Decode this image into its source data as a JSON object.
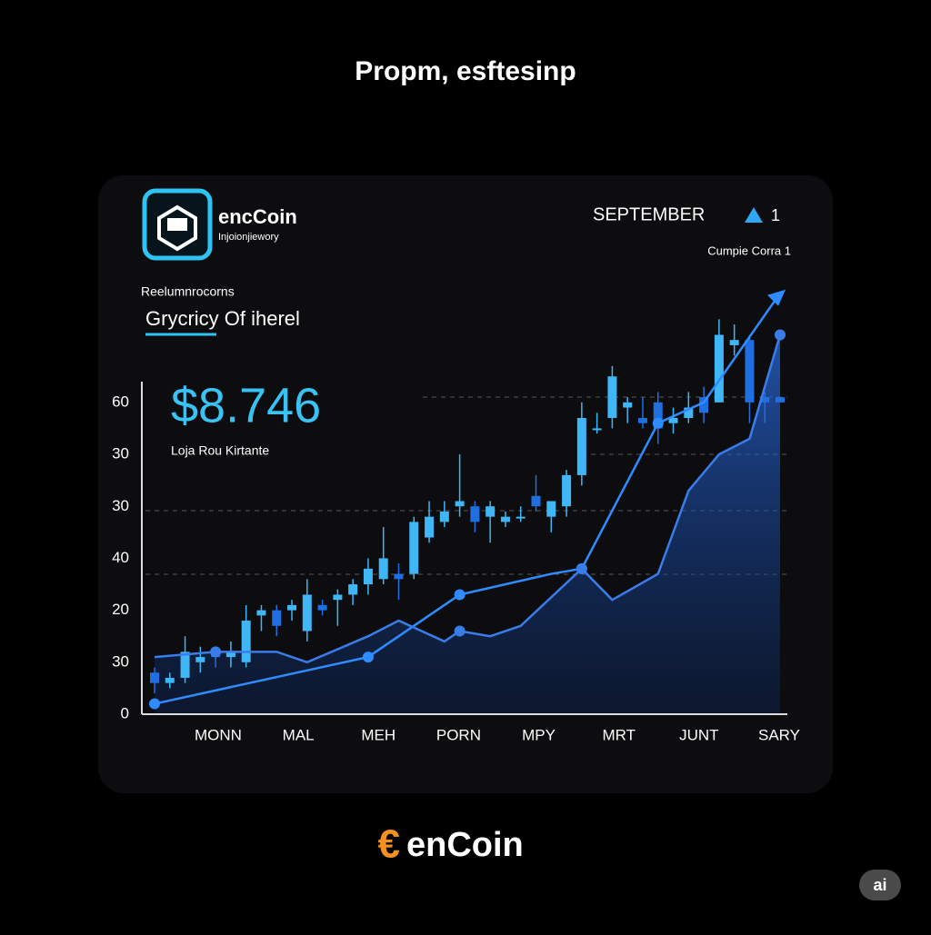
{
  "header": {
    "title": "Propm, esftesinp"
  },
  "card": {
    "brand": "encCoin",
    "brand_sub": "Injoionjiewory",
    "month": "SEPTEMBER",
    "change": "1",
    "compare": "Cumpie Corra 1",
    "section_label": "Reelumnrocorns",
    "section_title": "Grycricy Of iherel",
    "price": "$8.746",
    "price_sub": "Loja Rou Kirtante"
  },
  "chart_data": {
    "type": "candlestick",
    "y_axis_labels": [
      "60",
      "30",
      "30",
      "40",
      "20",
      "30",
      "0"
    ],
    "x_labels": [
      "MONN",
      "MAL",
      "MEH",
      "PORN",
      "MPY",
      "MRT",
      "JUNT",
      "SARY"
    ],
    "xlim": [
      0,
      41
    ],
    "ylim": [
      0,
      82
    ],
    "up_color": "#3fb6f5",
    "down_color": "#1f6fe0",
    "open": [
      8,
      6,
      7,
      10,
      12,
      11,
      10,
      19,
      20,
      20,
      16,
      21,
      22,
      23,
      25,
      26,
      27,
      27,
      34,
      37,
      40,
      40,
      38,
      37,
      38,
      42,
      38,
      40,
      46,
      55,
      57,
      59,
      57,
      60,
      56,
      57,
      61,
      60,
      71,
      72,
      61,
      61
    ],
    "close": [
      6,
      7,
      12,
      11,
      11,
      12,
      18,
      20,
      17,
      21,
      23,
      20,
      23,
      25,
      28,
      30,
      26,
      37,
      38,
      39,
      41,
      37,
      40,
      38,
      38,
      40,
      41,
      46,
      57,
      55,
      65,
      60,
      56,
      55,
      57,
      59,
      58,
      73,
      72,
      60,
      60,
      60
    ],
    "high": [
      9,
      8,
      15,
      13,
      13,
      14,
      21,
      21,
      21,
      22,
      26,
      22,
      24,
      26,
      30,
      36,
      29,
      38,
      41,
      41,
      50,
      41,
      41,
      39,
      40,
      46,
      41,
      47,
      60,
      58,
      67,
      61,
      61,
      62,
      59,
      62,
      63,
      76,
      75,
      73,
      62,
      61
    ],
    "low": [
      4,
      5,
      6,
      8,
      9,
      9,
      9,
      16,
      15,
      18,
      14,
      19,
      17,
      21,
      23,
      25,
      22,
      26,
      33,
      36,
      38,
      35,
      33,
      36,
      37,
      39,
      35,
      38,
      44,
      54,
      55,
      56,
      55,
      52,
      54,
      56,
      56,
      60,
      69,
      56,
      56,
      60
    ],
    "lines": [
      {
        "color": "#2f8cff",
        "x": [
          0,
          14,
          20,
          26,
          28,
          33,
          36,
          41
        ],
        "values": [
          2,
          11,
          23,
          27,
          28,
          56,
          60,
          81
        ]
      },
      {
        "color": "#3a7dea",
        "x": [
          0,
          4,
          8,
          10,
          14,
          16,
          19,
          20,
          22,
          24,
          28,
          30,
          33,
          35,
          37,
          39,
          41
        ],
        "values": [
          11,
          12,
          12,
          10,
          15,
          18,
          14,
          16,
          15,
          17,
          28,
          22,
          27,
          43,
          50,
          53,
          73
        ]
      }
    ]
  },
  "footer": {
    "logo": "€",
    "brand": "enCoin",
    "badge": "ai"
  }
}
